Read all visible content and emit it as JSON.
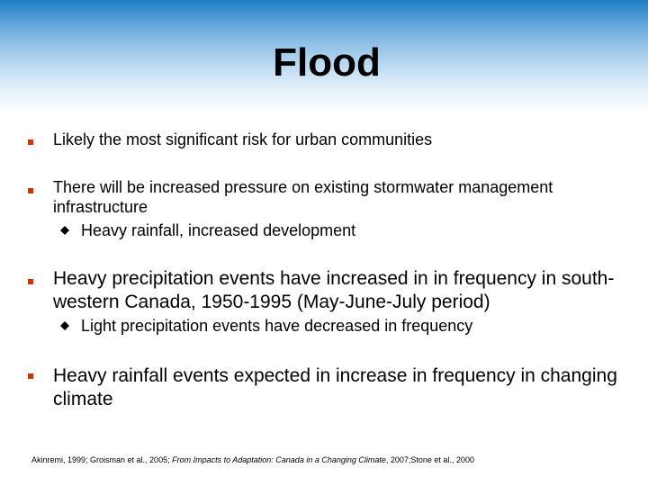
{
  "slide": {
    "title": "Flood",
    "bullets": [
      {
        "text": "Likely the most significant risk for urban communities"
      },
      {
        "text": "There will be increased pressure on existing stormwater management infrastructure",
        "sub": "Heavy rainfall, increased development"
      },
      {
        "text": "Heavy precipitation events have increased in in frequency in south-western Canada, 1950-1995 (May-June-July period)",
        "sub": "Light precipitation events have decreased in frequency"
      },
      {
        "text": "Heavy rainfall events expected in increase in frequency in changing climate"
      }
    ],
    "footnote": {
      "part1": "Akinremi, 1999; Groisman et al., 2005; ",
      "italic": "From Impacts to Adaptation: Canada in a Changing Climate",
      "part2": ", 2007;Stone et al., 2000"
    }
  },
  "colors": {
    "header_top": "#1f7fc4",
    "bullet": "#cc3300",
    "sub_bullet": "#000000"
  },
  "icons": {
    "bullet": "square-bullet-icon",
    "sub_bullet": "diamond-bullet-icon"
  }
}
